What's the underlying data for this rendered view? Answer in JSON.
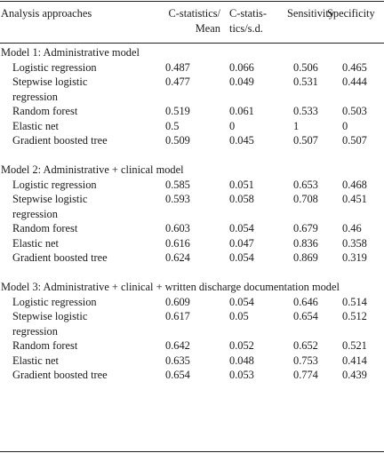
{
  "headers": {
    "approach": "Analysis approaches",
    "mean": "C-statistics/ Mean",
    "sd": "C-statis- tics/s.d.",
    "sensitivity": "Sensitivity",
    "specificity": "Specificity"
  },
  "sections": [
    {
      "title": "Model 1: Administrative model",
      "rows": [
        {
          "name": "Logistic regression",
          "mean": "0.487",
          "sd": "0.066",
          "sens": "0.506",
          "spec": "0.465"
        },
        {
          "name": "Stepwise logistic regression",
          "mean": "0.477",
          "sd": "0.049",
          "sens": "0.531",
          "spec": "0.444"
        },
        {
          "name": "Random forest",
          "mean": "0.519",
          "sd": "0.061",
          "sens": "0.533",
          "spec": "0.503"
        },
        {
          "name": "Elastic net",
          "mean": "0.5",
          "sd": "0",
          "sens": "1",
          "spec": "0"
        },
        {
          "name": "Gradient boosted tree",
          "mean": "0.509",
          "sd": "0.045",
          "sens": "0.507",
          "spec": "0.507"
        }
      ]
    },
    {
      "title": "Model 2: Administrative + clinical model",
      "rows": [
        {
          "name": "Logistic regression",
          "mean": "0.585",
          "sd": "0.051",
          "sens": "0.653",
          "spec": "0.468"
        },
        {
          "name": "Stepwise logistic regression",
          "mean": "0.593",
          "sd": "0.058",
          "sens": "0.708",
          "spec": "0.451"
        },
        {
          "name": "Random forest",
          "mean": "0.603",
          "sd": "0.054",
          "sens": "0.679",
          "spec": "0.46"
        },
        {
          "name": "Elastic net",
          "mean": "0.616",
          "sd": "0.047",
          "sens": "0.836",
          "spec": "0.358"
        },
        {
          "name": "Gradient boosted tree",
          "mean": "0.624",
          "sd": "0.054",
          "sens": "0.869",
          "spec": "0.319"
        }
      ]
    },
    {
      "title": "Model 3: Administrative + clinical + written discharge documentation model",
      "rows": [
        {
          "name": "Logistic regression",
          "mean": "0.609",
          "sd": "0.054",
          "sens": "0.646",
          "spec": "0.514"
        },
        {
          "name": "Stepwise logistic regression",
          "mean": "0.617",
          "sd": "0.05",
          "sens": "0.654",
          "spec": "0.512"
        },
        {
          "name": "Random forest",
          "mean": "0.642",
          "sd": "0.052",
          "sens": "0.652",
          "spec": "0.521"
        },
        {
          "name": "Elastic net",
          "mean": "0.635",
          "sd": "0.048",
          "sens": "0.753",
          "spec": "0.414"
        },
        {
          "name": "Gradient boosted tree",
          "mean": "0.654",
          "sd": "0.053",
          "sens": "0.774",
          "spec": "0.439"
        }
      ]
    }
  ]
}
